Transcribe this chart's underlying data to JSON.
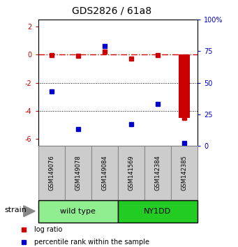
{
  "title": "GDS2826 / 61a8",
  "samples": [
    "GSM149076",
    "GSM149078",
    "GSM149084",
    "GSM141569",
    "GSM142384",
    "GSM142385"
  ],
  "log_ratio": [
    -0.05,
    -0.1,
    0.2,
    -0.3,
    -0.05,
    -4.5
  ],
  "percentile_rank": [
    43,
    13,
    79,
    17,
    33,
    2
  ],
  "log_ratio_color": "#cc0000",
  "percentile_color": "#0000cc",
  "ylim_left": [
    -6.5,
    2.5
  ],
  "ylim_right": [
    0,
    100
  ],
  "bar_color": "#cc0000",
  "wt_color": "#90ee90",
  "ny_color": "#22cc22",
  "legend_logratio": "log ratio",
  "legend_percentile": "percentile rank within the sample",
  "strain_label": "strain",
  "wt_label": "wild type",
  "ny_label": "NY1DD",
  "yticks_left": [
    2,
    0,
    -2,
    -4,
    -6
  ],
  "yticks_right": [
    0,
    25,
    50,
    75,
    100
  ]
}
